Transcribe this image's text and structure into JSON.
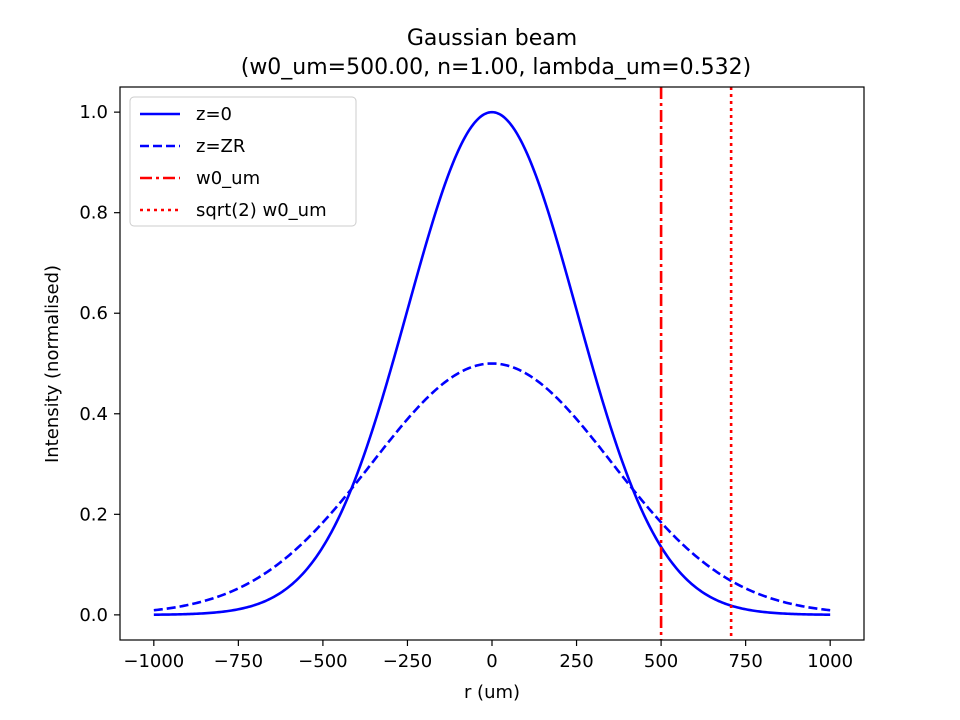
{
  "chart_data": {
    "type": "line",
    "title_line1": "Gaussian beam",
    "title_line2": "(w0_um=500.00, n=1.00, lambda_um=0.532)",
    "xlabel": "r (um)",
    "ylabel": "Intensity (normalised)",
    "xlim": [
      -1100,
      1100
    ],
    "ylim": [
      -0.05,
      1.05
    ],
    "x_ticks": [
      -1000,
      -750,
      -500,
      -250,
      0,
      250,
      500,
      750,
      1000
    ],
    "x_tick_labels": [
      "−1000",
      "−750",
      "−500",
      "−250",
      "0",
      "250",
      "500",
      "750",
      "1000"
    ],
    "y_ticks": [
      0.0,
      0.2,
      0.4,
      0.6,
      0.8,
      1.0
    ],
    "y_tick_labels": [
      "0.0",
      "0.2",
      "0.4",
      "0.6",
      "0.8",
      "1.0"
    ],
    "grid": false,
    "legend_position": "upper-left",
    "series": [
      {
        "name": "z=0",
        "style": "solid",
        "color": "#0000ff",
        "x": [
          -1000,
          -900,
          -800,
          -700,
          -600,
          -500,
          -400,
          -300,
          -200,
          -100,
          0,
          100,
          200,
          300,
          400,
          500,
          600,
          700,
          800,
          900,
          1000
        ],
        "y": [
          0.0003,
          0.0015,
          0.006,
          0.0198,
          0.0561,
          0.1353,
          0.278,
          0.4868,
          0.7261,
          0.9231,
          1.0,
          0.9231,
          0.7261,
          0.4868,
          0.278,
          0.1353,
          0.0561,
          0.0198,
          0.006,
          0.0015,
          0.0003
        ]
      },
      {
        "name": "z=ZR",
        "style": "dashed",
        "color": "#0000ff",
        "x": [
          -1000,
          -900,
          -800,
          -700,
          -600,
          -500,
          -400,
          -300,
          -200,
          -100,
          0,
          100,
          200,
          300,
          400,
          500,
          600,
          700,
          800,
          900,
          1000
        ],
        "y": [
          0.0092,
          0.0196,
          0.0385,
          0.0705,
          0.1186,
          0.1839,
          0.2637,
          0.3488,
          0.4262,
          0.4804,
          0.5,
          0.4804,
          0.4262,
          0.3488,
          0.2637,
          0.1839,
          0.1186,
          0.0705,
          0.0385,
          0.0196,
          0.0092
        ]
      }
    ],
    "vlines": [
      {
        "name": "w0_um",
        "x": 500,
        "style": "dashdot",
        "color": "#ff0000"
      },
      {
        "name": "sqrt(2) w0_um",
        "x": 707.1,
        "style": "dotted",
        "color": "#ff0000"
      }
    ]
  }
}
